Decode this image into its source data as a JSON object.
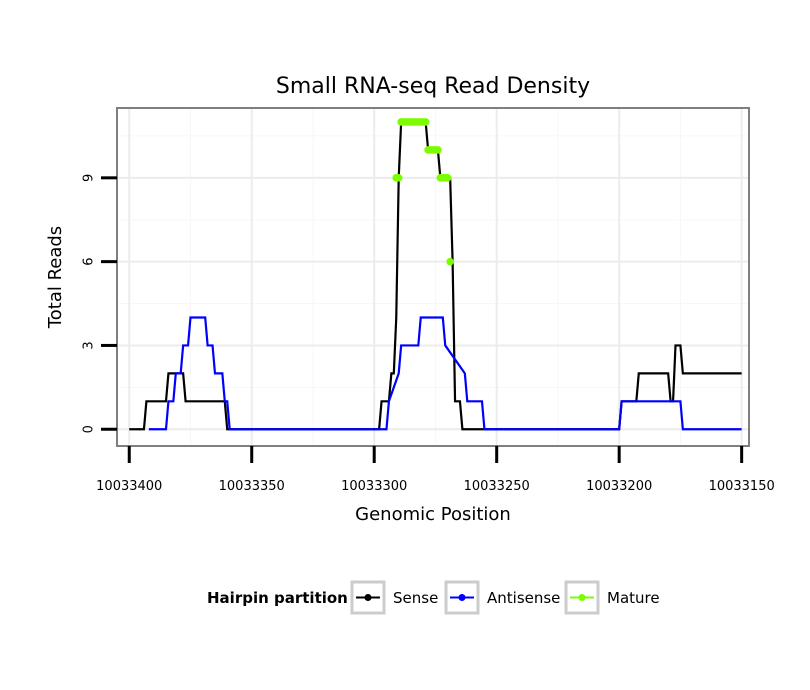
{
  "chart_data": {
    "type": "line",
    "title": "Small RNA-seq Read Density",
    "xlabel": "Genomic Position",
    "ylabel": "Total Reads",
    "x_reversed": true,
    "xlim": [
      10033405,
      10033147
    ],
    "ylim": [
      -0.6,
      11.5
    ],
    "xticks": [
      10033400,
      10033350,
      10033300,
      10033250,
      10033200,
      10033150
    ],
    "xtick_labels": [
      "10033400",
      "10033350",
      "10033300",
      "10033250",
      "10033200",
      "10033150"
    ],
    "yticks": [
      0,
      3,
      6,
      9
    ],
    "ytick_labels": [
      "0",
      "3",
      "6",
      "9"
    ],
    "grid": true,
    "legend": {
      "title": "Hairpin partition",
      "position": "bottom",
      "entries": [
        "Sense",
        "Antisense",
        "Mature"
      ]
    },
    "series": [
      {
        "name": "Sense",
        "color": "#000000",
        "x": [
          10033400,
          10033394,
          10033393,
          10033385,
          10033384,
          10033378,
          10033377,
          10033370,
          10033369,
          10033361,
          10033360,
          10033298,
          10033297,
          10033294,
          10033293,
          10033292,
          10033291,
          10033290,
          10033289,
          10033288,
          10033287,
          10033286,
          10033285,
          10033284,
          10033283,
          10033282,
          10033281,
          10033280,
          10033279,
          10033278,
          10033277,
          10033276,
          10033275,
          10033274,
          10033273,
          10033272,
          10033271,
          10033270,
          10033269,
          10033268,
          10033267,
          10033266,
          10033265,
          10033264,
          10033263,
          10033262,
          10033261,
          10033260,
          10033200,
          10033199,
          10033193,
          10033192,
          10033180,
          10033179,
          10033178,
          10033177,
          10033175,
          10033174,
          10033150
        ],
        "y": [
          0,
          0,
          1,
          1,
          2,
          2,
          1,
          1,
          1,
          1,
          0,
          0,
          1,
          1,
          2,
          2,
          4,
          9,
          11,
          11,
          11,
          11,
          11,
          11,
          11,
          11,
          11,
          11,
          11,
          10,
          10,
          10,
          10,
          10,
          9,
          9,
          9,
          9,
          9,
          6,
          1,
          1,
          1,
          0,
          0,
          0,
          0,
          0,
          0,
          1,
          1,
          2,
          2,
          1,
          1,
          3,
          3,
          2,
          2
        ]
      },
      {
        "name": "Antisense",
        "color": "#0000ff",
        "x": [
          10033392,
          10033385,
          10033384,
          10033382,
          10033381,
          10033379,
          10033378,
          10033376,
          10033375,
          10033369,
          10033368,
          10033366,
          10033365,
          10033362,
          10033361,
          10033360,
          10033359,
          10033295,
          10033294,
          10033290,
          10033289,
          10033282,
          10033281,
          10033272,
          10033271,
          10033263,
          10033262,
          10033256,
          10033255,
          10033200,
          10033199,
          10033175,
          10033174,
          10033150
        ],
        "y": [
          0,
          0,
          1,
          1,
          2,
          2,
          3,
          3,
          4,
          4,
          3,
          3,
          2,
          2,
          1,
          1,
          0,
          0,
          1,
          2,
          3,
          3,
          4,
          4,
          3,
          2,
          1,
          1,
          0,
          0,
          1,
          1,
          0,
          0
        ]
      },
      {
        "name": "Mature",
        "color": "#7cfc00",
        "x": [
          10033291,
          10033290,
          10033289,
          10033288,
          10033287,
          10033286,
          10033285,
          10033284,
          10033283,
          10033282,
          10033281,
          10033280,
          10033279,
          10033278,
          10033277,
          10033276,
          10033275,
          10033274,
          10033273,
          10033272,
          10033271,
          10033270,
          10033269
        ],
        "y": [
          9,
          9,
          11,
          11,
          11,
          11,
          11,
          11,
          11,
          11,
          11,
          11,
          11,
          10,
          10,
          10,
          10,
          10,
          9,
          9,
          9,
          9,
          6
        ]
      }
    ]
  }
}
